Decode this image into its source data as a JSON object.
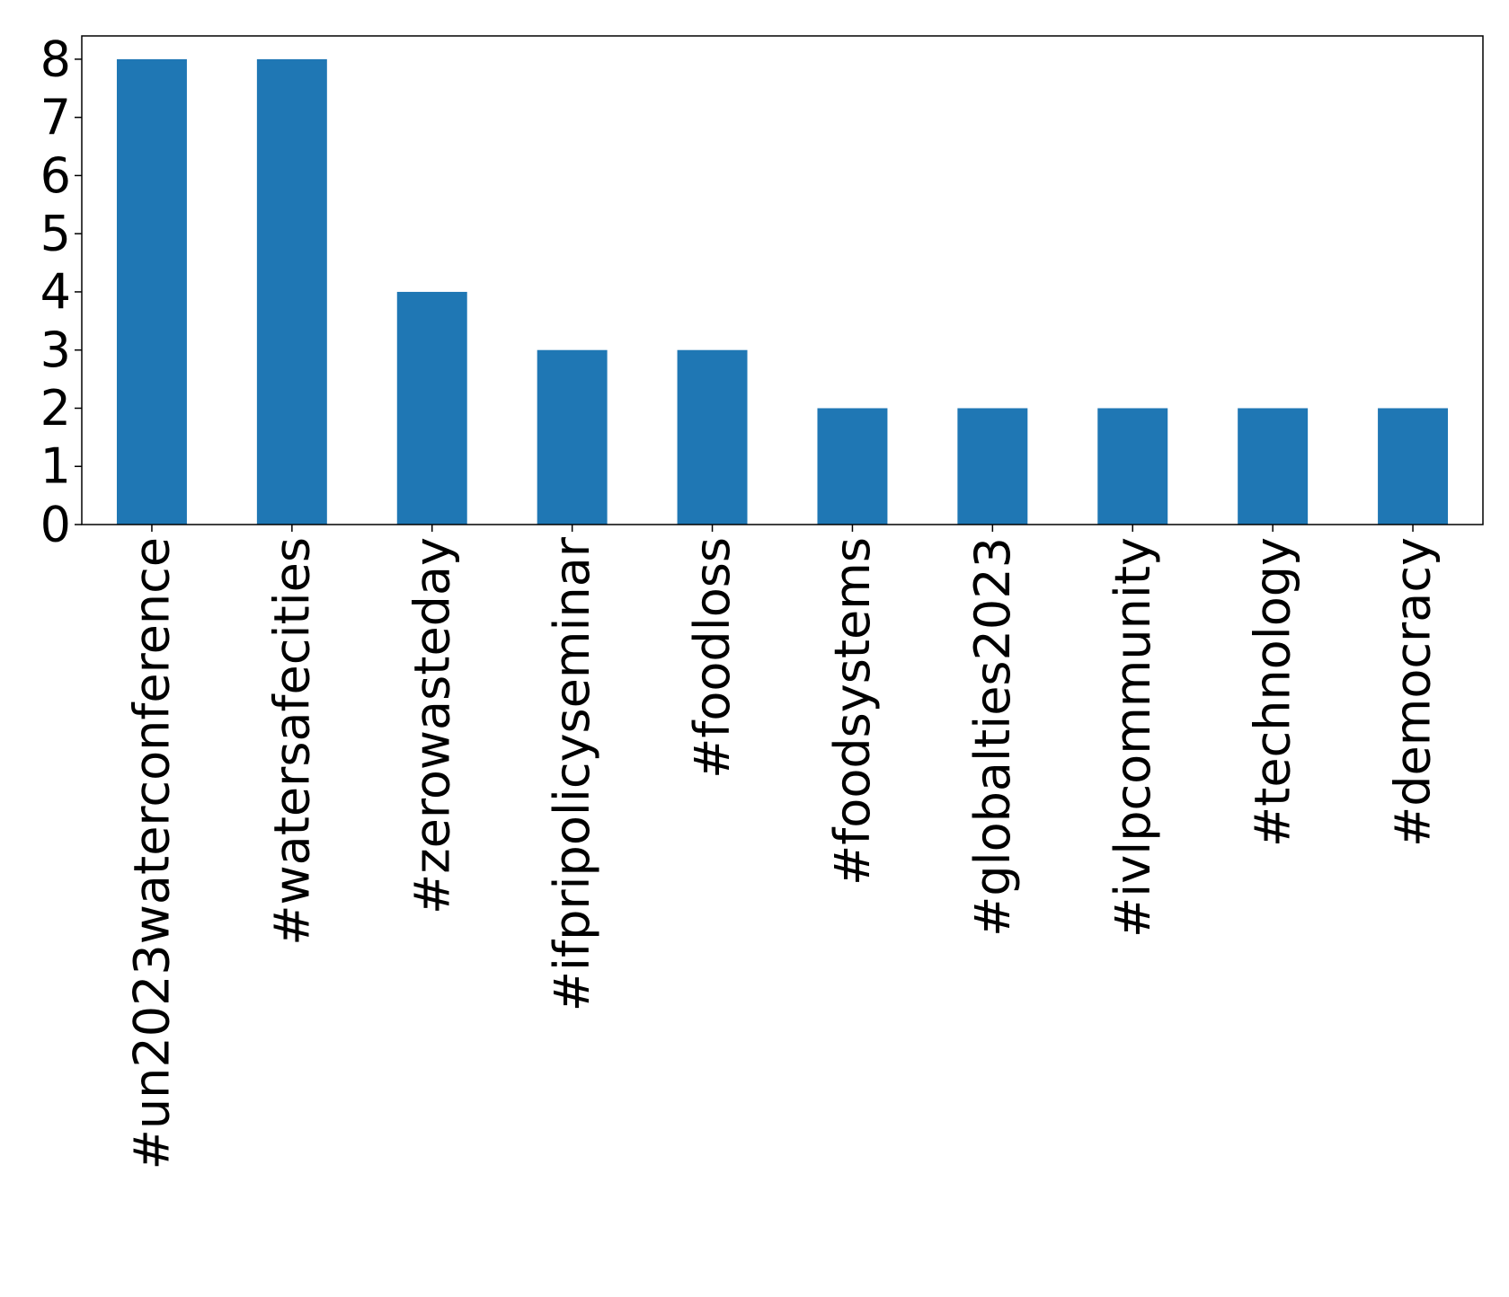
{
  "chart_data": {
    "type": "bar",
    "categories": [
      "#un2023waterconference",
      "#watersafecities",
      "#zerowasteday",
      "#ifpripolicyseminar",
      "#foodloss",
      "#foodsystems",
      "#globalties2023",
      "#ivlpcommunity",
      "#technology",
      "#democracy"
    ],
    "values": [
      8,
      8,
      4,
      3,
      3,
      2,
      2,
      2,
      2,
      2
    ],
    "title": "",
    "xlabel": "",
    "ylabel": "",
    "ylim": [
      0,
      8.4
    ],
    "yticks": [
      "0",
      "1",
      "2",
      "3",
      "4",
      "5",
      "6",
      "7",
      "8"
    ],
    "bar_color": "#1f77b4",
    "grid": false,
    "legend": "none"
  }
}
